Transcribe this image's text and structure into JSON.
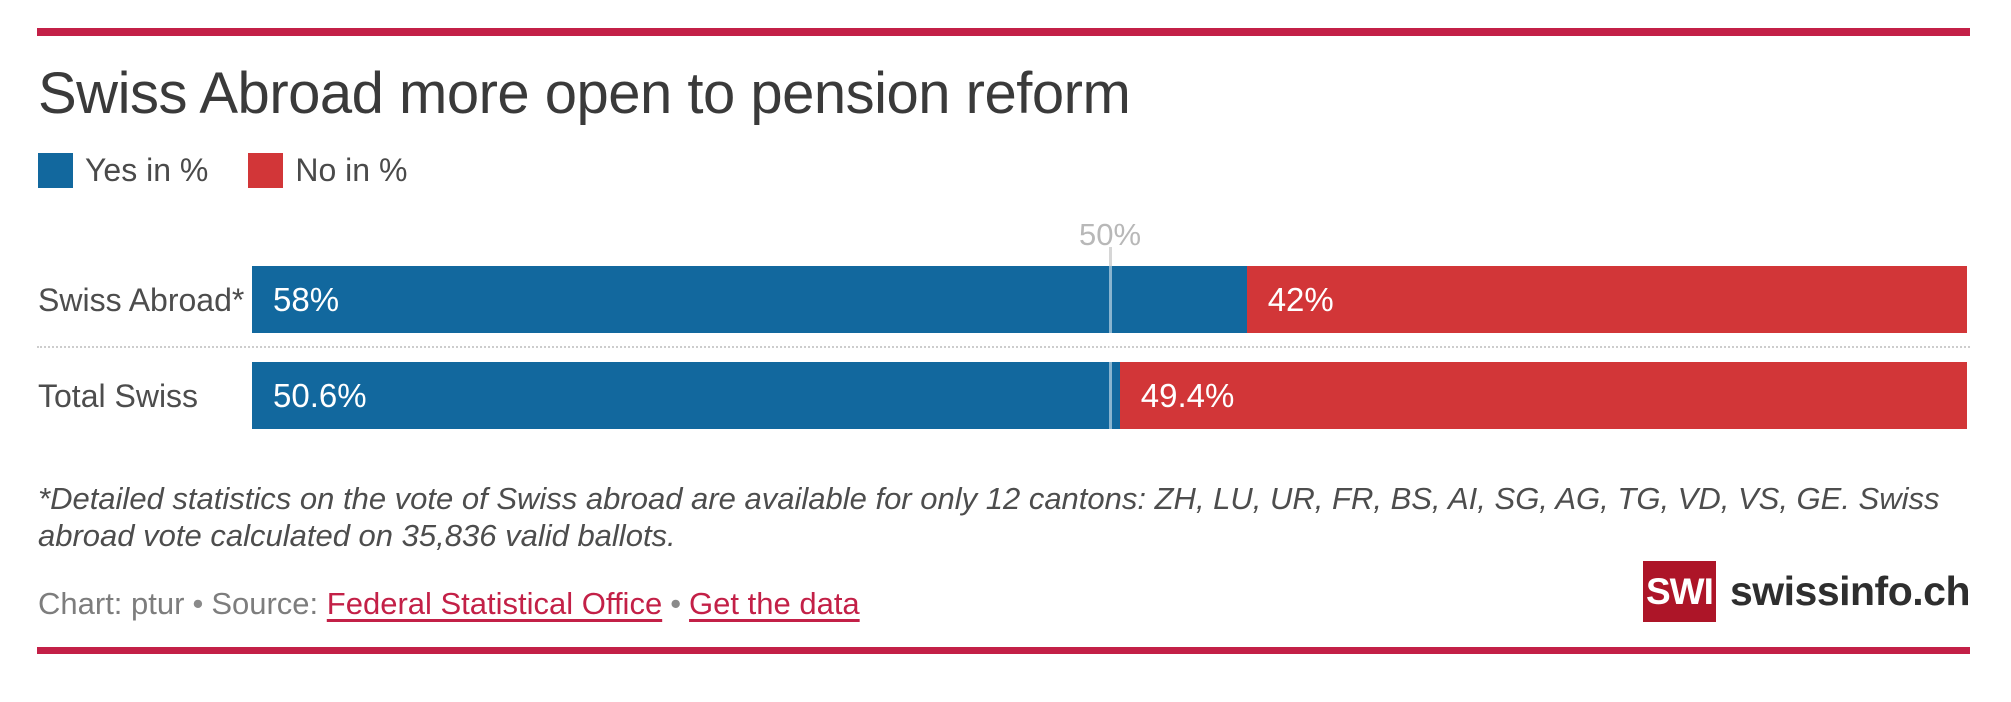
{
  "title": "Swiss Abroad more open to pension reform",
  "colors": {
    "yes_blue": "#12689e",
    "no_red": "#d23638",
    "rule_crimson": "#c32047",
    "logo_red": "#ad1528"
  },
  "legend": {
    "yes_label": "Yes in %",
    "no_label": "No in %"
  },
  "axis": {
    "gridline_label": "50%"
  },
  "rows": [
    {
      "label": "Swiss Abroad*",
      "yes_label": "58%",
      "no_label": "42%",
      "yes_pct": 58,
      "no_pct": 42
    },
    {
      "label": "Total Swiss",
      "yes_label": "50.6%",
      "no_label": "49.4%",
      "yes_pct": 50.6,
      "no_pct": 49.4
    }
  ],
  "footnote": "*Detailed statistics on the vote of Swiss abroad are available for only 12 cantons: ZH, LU, UR, FR, BS, AI, SG, AG, TG, VD, VS, GE. Swiss abroad vote calculated on 35,836 valid ballots.",
  "credit": {
    "chart_label": "Chart: ptur",
    "separator": "•",
    "source_label": "Source:",
    "source_link": "Federal Statistical Office",
    "data_link": "Get the data"
  },
  "logo": {
    "abbr": "SWI",
    "name": "swissinfo.ch"
  },
  "chart_data": {
    "type": "bar",
    "orientation": "horizontal-stacked",
    "title": "Swiss Abroad more open to pension reform",
    "categories": [
      "Swiss Abroad*",
      "Total Swiss"
    ],
    "series": [
      {
        "name": "Yes in %",
        "color": "#12689e",
        "values": [
          58,
          50.6
        ]
      },
      {
        "name": "No in %",
        "color": "#d23638",
        "values": [
          42,
          49.4
        ]
      }
    ],
    "xlim": [
      0,
      100
    ],
    "gridlines": [
      {
        "value": 50,
        "label": "50%"
      }
    ],
    "legend_position": "top-left",
    "value_labels": [
      [
        "58%",
        "42%"
      ],
      [
        "50.6%",
        "49.4%"
      ]
    ]
  }
}
